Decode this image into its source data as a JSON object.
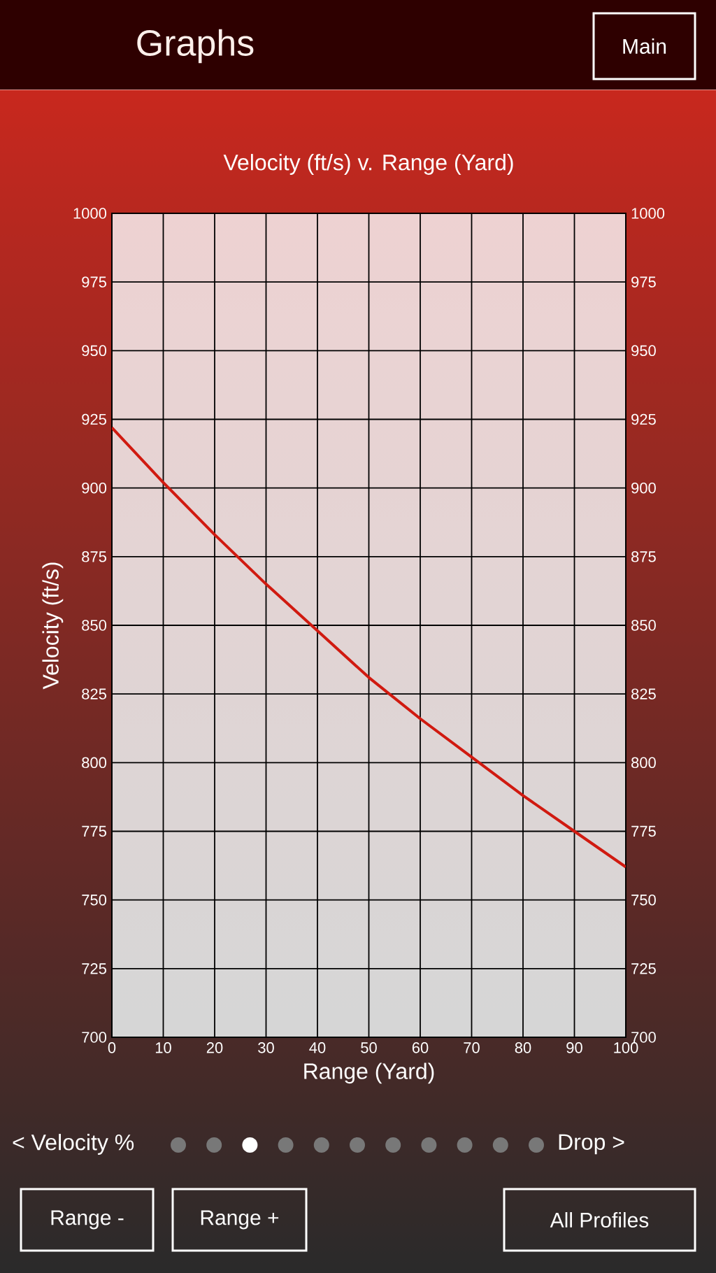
{
  "chart_data": {
    "type": "line",
    "title": "Velocity (ft/s) v. Range (Yard)",
    "xlabel": "Range (Yard)",
    "ylabel": "Velocity (ft/s)",
    "x": [
      0,
      10,
      20,
      30,
      40,
      50,
      60,
      70,
      80,
      90,
      100
    ],
    "series": [
      {
        "color": "#d01a10",
        "values": [
          922,
          902,
          883,
          865,
          848,
          831,
          816,
          802,
          788,
          775,
          762
        ]
      }
    ],
    "xlim": [
      0,
      100
    ],
    "xticks": [
      0,
      10,
      20,
      30,
      40,
      50,
      60,
      70,
      80,
      90,
      100
    ],
    "ylim": [
      700,
      1000
    ],
    "yticks": [
      700,
      725,
      750,
      775,
      800,
      825,
      850,
      875,
      900,
      925,
      950,
      975,
      1000
    ],
    "y2lim": [
      700,
      1000
    ],
    "y2ticks": [
      700,
      725,
      750,
      775,
      800,
      825,
      850,
      875,
      900,
      925,
      950,
      975,
      1000
    ],
    "grid": true,
    "annotations": [
      "Graphs",
      "Main",
      "< Velocity %",
      "Drop >",
      "Range -",
      "Range +",
      "All Profiles"
    ]
  }
}
